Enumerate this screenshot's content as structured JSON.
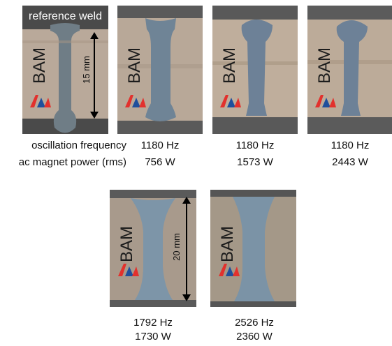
{
  "reference_label": "reference weld",
  "logo_text": "BAM",
  "scale_top": "15 mm",
  "scale_bottom": "20 mm",
  "row_labels": {
    "frequency": "oscillation frequency",
    "power": "ac magnet power (rms)"
  },
  "top_samples": [
    {
      "frequency": "1180 Hz",
      "power": "756 W"
    },
    {
      "frequency": "1180 Hz",
      "power": "1573 W"
    },
    {
      "frequency": "1180 Hz",
      "power": "2443 W"
    }
  ],
  "bottom_samples": [
    {
      "frequency": "1792 Hz",
      "power": "1730 W"
    },
    {
      "frequency": "2526 Hz",
      "power": "2360 W"
    }
  ],
  "colors": {
    "plate": "#b9a99a",
    "backing": "#555555",
    "weld": "#6f8496",
    "logo_red": "#e2312d",
    "logo_blue": "#1f4f9c"
  }
}
